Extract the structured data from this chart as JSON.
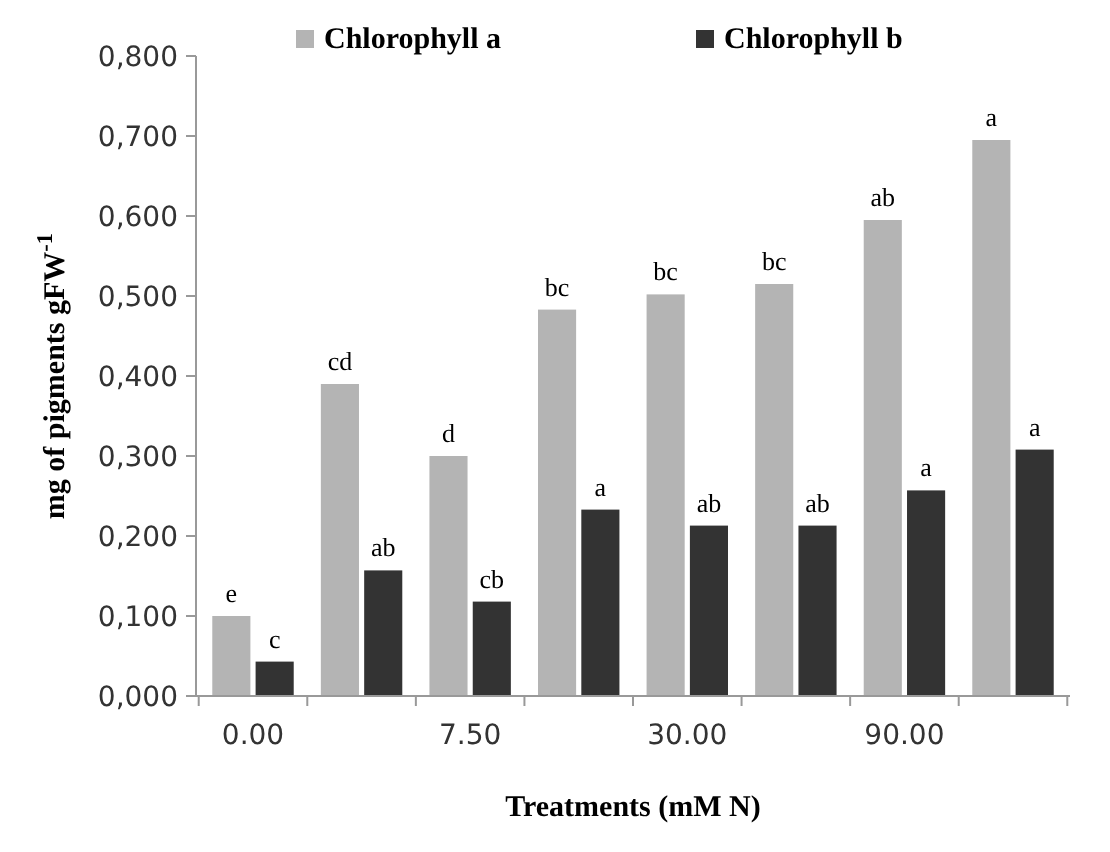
{
  "chart_data": {
    "type": "bar",
    "xlabel": "Treatments (mM N)",
    "ylabel": "mg of pigments  gFW$^{-1}$",
    "categories": [
      "0.00",
      null,
      "7.50",
      null,
      "30.00",
      null,
      "90.00",
      null
    ],
    "series": [
      {
        "name": "Chlorophyll a",
        "color": "#b4b4b4",
        "values": [
          0.1,
          0.39,
          0.3,
          0.483,
          0.502,
          0.515,
          0.595,
          0.695
        ],
        "value_labels": [
          "e",
          "cd",
          "d",
          "bc",
          "bc",
          "bc",
          "ab",
          "a"
        ]
      },
      {
        "name": "Chlorophyll b",
        "color": "#333333",
        "values": [
          0.043,
          0.157,
          0.118,
          0.233,
          0.213,
          0.213,
          0.257,
          0.308
        ],
        "value_labels": [
          "c",
          "ab",
          "cb",
          "a",
          "ab",
          "ab",
          "a",
          "a"
        ]
      }
    ],
    "ylim": [
      0,
      0.8
    ],
    "yticks": [
      {
        "value": 0,
        "label": "0,000"
      },
      {
        "value": 0.1,
        "label": "0,100"
      },
      {
        "value": 0.2,
        "label": "0,200"
      },
      {
        "value": 0.3,
        "label": "0,300"
      },
      {
        "value": 0.4,
        "label": "0,400"
      },
      {
        "value": 0.5,
        "label": "0,500"
      },
      {
        "value": 0.6,
        "label": "0,600"
      },
      {
        "value": 0.7,
        "label": "0,700"
      },
      {
        "value": 0.8,
        "label": "0,800"
      }
    ],
    "grid": false,
    "legend": "top"
  }
}
